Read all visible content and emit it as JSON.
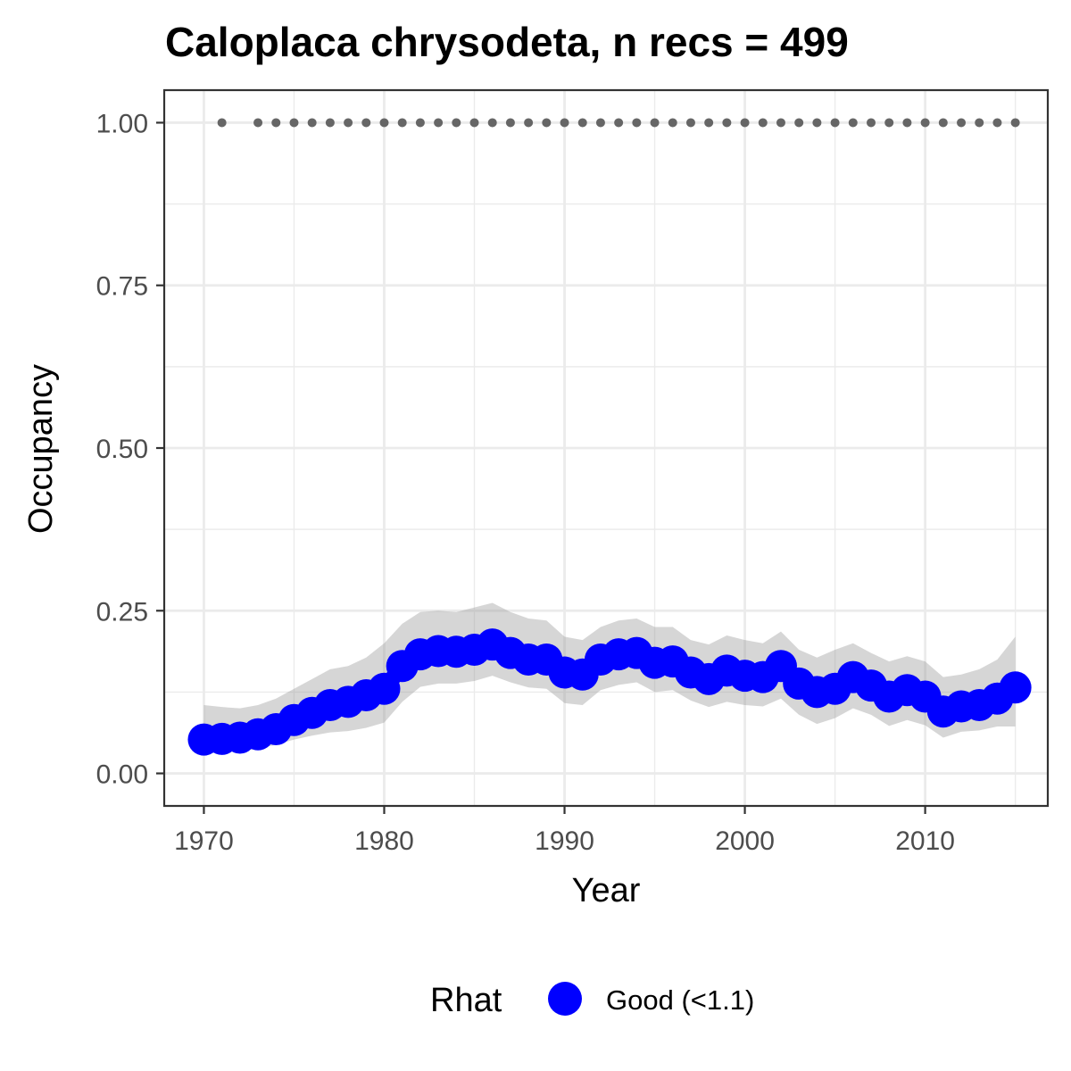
{
  "chart_data": {
    "type": "line",
    "title": "Caloplaca chrysodeta, n recs = 499",
    "xlabel": "Year",
    "ylabel": "Occupancy",
    "xlim": [
      1967.8,
      2016.8
    ],
    "ylim": [
      -0.05,
      1.05
    ],
    "x_ticks": [
      1970,
      1980,
      1990,
      2000,
      2010
    ],
    "x_tick_labels": [
      "1970",
      "1980",
      "1990",
      "2000",
      "2010"
    ],
    "y_ticks": [
      0,
      0.25,
      0.5,
      0.75,
      1.0
    ],
    "y_tick_labels": [
      "0.00",
      "0.25",
      "0.50",
      "0.75",
      "1.00"
    ],
    "grid": true,
    "years": [
      1970,
      1971,
      1972,
      1973,
      1974,
      1975,
      1976,
      1977,
      1978,
      1979,
      1980,
      1981,
      1982,
      1983,
      1984,
      1985,
      1986,
      1987,
      1988,
      1989,
      1990,
      1991,
      1992,
      1993,
      1994,
      1995,
      1996,
      1997,
      1998,
      1999,
      2000,
      2001,
      2002,
      2003,
      2004,
      2005,
      2006,
      2007,
      2008,
      2009,
      2010,
      2011,
      2012,
      2013,
      2014,
      2015
    ],
    "series": [
      {
        "values": [
          0.052,
          0.053,
          0.055,
          0.06,
          0.068,
          0.082,
          0.093,
          0.105,
          0.11,
          0.12,
          0.13,
          0.165,
          0.183,
          0.188,
          0.187,
          0.19,
          0.198,
          0.185,
          0.175,
          0.175,
          0.155,
          0.152,
          0.175,
          0.183,
          0.185,
          0.17,
          0.172,
          0.155,
          0.145,
          0.158,
          0.15,
          0.148,
          0.165,
          0.138,
          0.125,
          0.13,
          0.148,
          0.135,
          0.118,
          0.128,
          0.118,
          0.095,
          0.103,
          0.105,
          0.115,
          0.132
        ],
        "lower": [
          0.032,
          0.032,
          0.034,
          0.038,
          0.044,
          0.052,
          0.058,
          0.063,
          0.065,
          0.07,
          0.078,
          0.11,
          0.133,
          0.138,
          0.138,
          0.142,
          0.15,
          0.14,
          0.132,
          0.13,
          0.108,
          0.105,
          0.128,
          0.136,
          0.14,
          0.125,
          0.128,
          0.112,
          0.102,
          0.11,
          0.105,
          0.103,
          0.115,
          0.09,
          0.076,
          0.085,
          0.1,
          0.09,
          0.073,
          0.082,
          0.074,
          0.055,
          0.064,
          0.066,
          0.072,
          0.072
        ],
        "upper": [
          0.105,
          0.102,
          0.1,
          0.105,
          0.115,
          0.13,
          0.145,
          0.16,
          0.165,
          0.178,
          0.2,
          0.23,
          0.248,
          0.25,
          0.248,
          0.255,
          0.262,
          0.248,
          0.238,
          0.235,
          0.21,
          0.205,
          0.225,
          0.235,
          0.238,
          0.225,
          0.225,
          0.205,
          0.198,
          0.212,
          0.205,
          0.2,
          0.218,
          0.19,
          0.178,
          0.19,
          0.2,
          0.185,
          0.172,
          0.18,
          0.172,
          0.148,
          0.152,
          0.16,
          0.175,
          0.21
        ],
        "color": "#0000FF",
        "ribbon_color": "#999999"
      }
    ],
    "records_years": [
      1971,
      1973,
      1974,
      1975,
      1976,
      1977,
      1978,
      1979,
      1980,
      1981,
      1982,
      1983,
      1984,
      1985,
      1986,
      1987,
      1988,
      1989,
      1990,
      1991,
      1992,
      1993,
      1994,
      1995,
      1996,
      1997,
      1998,
      1999,
      2000,
      2001,
      2002,
      2003,
      2004,
      2005,
      2006,
      2007,
      2008,
      2009,
      2010,
      2011,
      2012,
      2013,
      2014,
      2015
    ],
    "records_value": 1.0,
    "records_color": "#666666",
    "legend": {
      "title": "Rhat",
      "entries": [
        {
          "label": "Good (<1.1)",
          "color": "#0000FF"
        }
      ],
      "position": "bottom"
    }
  }
}
